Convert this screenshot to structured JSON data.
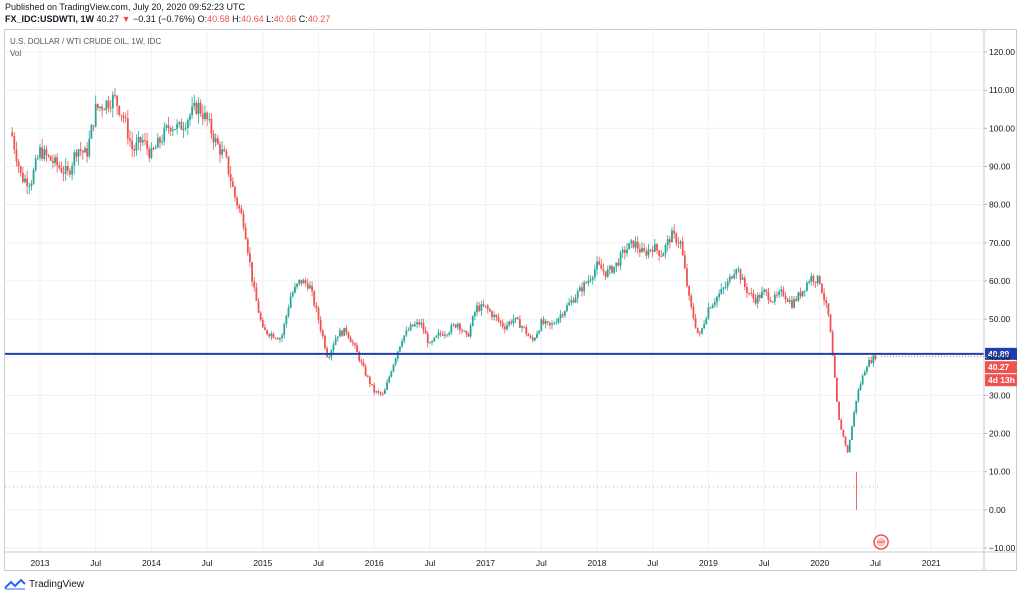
{
  "header": {
    "published": "Published on TradingView.com, July 20, 2020 09:52:23 UTC",
    "symbol": "FX_IDC:USDWTI, 1W",
    "last": "40.27",
    "change_arrow": "▼",
    "change": "−0.31 (−0.76%)",
    "o_label": "O:",
    "o_value": "40.58",
    "h_label": "H:",
    "h_value": "40.64",
    "l_label": "L:",
    "l_value": "40.06",
    "c_label": "C:",
    "c_value": "40.27"
  },
  "legend": {
    "title": "U.S. DOLLAR / WTI CRUDE OIL, 1W, IDC",
    "vol": "Vol"
  },
  "price_axis": {
    "labels": [
      "120.00",
      "110.00",
      "100.00",
      "90.00",
      "80.00",
      "70.00",
      "60.00",
      "50.00",
      "40.00",
      "30.00",
      "20.00",
      "10.00",
      "0.00",
      "−10.00"
    ]
  },
  "time_axis": {
    "labels": [
      "2013",
      "Jul",
      "2014",
      "Jul",
      "2015",
      "Jul",
      "2016",
      "Jul",
      "2017",
      "Jul",
      "2018",
      "Jul",
      "2019",
      "Jul",
      "2020",
      "Jul",
      "2021"
    ]
  },
  "tags": {
    "hline": "40.89",
    "price": "40.27",
    "countdown": "4d 13h"
  },
  "branding": {
    "name": "TradingView"
  },
  "colors": {
    "up": "#26a69a",
    "down": "#ef5350",
    "hline": "#1e40af",
    "dotted": "#d98c8c",
    "grid": "#eef0f4"
  },
  "chart_data": {
    "type": "candlestick",
    "title": "U.S. DOLLAR / WTI CRUDE OIL, 1W, IDC",
    "ylim": [
      -10,
      120
    ],
    "ylabel": "",
    "horizontal_line": 40.89,
    "last_price": 40.27,
    "x_ticks": [
      "2013",
      "Jul",
      "2014",
      "Jul",
      "2015",
      "Jul",
      "2016",
      "Jul",
      "2017",
      "Jul",
      "2018",
      "Jul",
      "2019",
      "Jul",
      "2020",
      "Jul",
      "2021"
    ],
    "x_range": [
      "2012-10",
      "2021-04"
    ],
    "path": [
      [
        "2012-10",
        98
      ],
      [
        "2012-11",
        87
      ],
      [
        "2012-12",
        86
      ],
      [
        "2013-01",
        94
      ],
      [
        "2013-03",
        90
      ],
      [
        "2013-04",
        88
      ],
      [
        "2013-05",
        95
      ],
      [
        "2013-06",
        93
      ],
      [
        "2013-07",
        105
      ],
      [
        "2013-09",
        108
      ],
      [
        "2013-10",
        103
      ],
      [
        "2013-11",
        94
      ],
      [
        "2013-12",
        97
      ],
      [
        "2014-01",
        93
      ],
      [
        "2014-03",
        101
      ],
      [
        "2014-04",
        100
      ],
      [
        "2014-06",
        106
      ],
      [
        "2014-07",
        102
      ],
      [
        "2014-08",
        96
      ],
      [
        "2014-09",
        92
      ],
      [
        "2014-10",
        82
      ],
      [
        "2014-11",
        75
      ],
      [
        "2014-12",
        58
      ],
      [
        "2015-01",
        47
      ],
      [
        "2015-03",
        45
      ],
      [
        "2015-04",
        56
      ],
      [
        "2015-05",
        60
      ],
      [
        "2015-06",
        59
      ],
      [
        "2015-07",
        50
      ],
      [
        "2015-08",
        40
      ],
      [
        "2015-09",
        46
      ],
      [
        "2015-10",
        47
      ],
      [
        "2015-11",
        42
      ],
      [
        "2015-12",
        36
      ],
      [
        "2016-01",
        31
      ],
      [
        "2016-02",
        30
      ],
      [
        "2016-03",
        38
      ],
      [
        "2016-04",
        45
      ],
      [
        "2016-05",
        48
      ],
      [
        "2016-06",
        49
      ],
      [
        "2016-07",
        43
      ],
      [
        "2016-08",
        46
      ],
      [
        "2016-09",
        47
      ],
      [
        "2016-10",
        49
      ],
      [
        "2016-11",
        45
      ],
      [
        "2016-12",
        53
      ],
      [
        "2017-01",
        53
      ],
      [
        "2017-03",
        48
      ],
      [
        "2017-04",
        50
      ],
      [
        "2017-05",
        48
      ],
      [
        "2017-06",
        44
      ],
      [
        "2017-07",
        49
      ],
      [
        "2017-08",
        48
      ],
      [
        "2017-09",
        51
      ],
      [
        "2017-10",
        54
      ],
      [
        "2017-11",
        57
      ],
      [
        "2017-12",
        60
      ],
      [
        "2018-01",
        64
      ],
      [
        "2018-02",
        62
      ],
      [
        "2018-03",
        64
      ],
      [
        "2018-04",
        68
      ],
      [
        "2018-05",
        70
      ],
      [
        "2018-06",
        67
      ],
      [
        "2018-07",
        69
      ],
      [
        "2018-08",
        67
      ],
      [
        "2018-09",
        72
      ],
      [
        "2018-10",
        70
      ],
      [
        "2018-11",
        54
      ],
      [
        "2018-12",
        45
      ],
      [
        "2019-01",
        53
      ],
      [
        "2019-02",
        56
      ],
      [
        "2019-03",
        59
      ],
      [
        "2019-04",
        64
      ],
      [
        "2019-05",
        58
      ],
      [
        "2019-06",
        55
      ],
      [
        "2019-07",
        57
      ],
      [
        "2019-08",
        55
      ],
      [
        "2019-09",
        57
      ],
      [
        "2019-10",
        54
      ],
      [
        "2019-11",
        57
      ],
      [
        "2019-12",
        61
      ],
      [
        "2020-01",
        60
      ],
      [
        "2020-02",
        50
      ],
      [
        "2020-03",
        24
      ],
      [
        "2020-04",
        15
      ],
      [
        "2020-05",
        30
      ],
      [
        "2020-06",
        38
      ],
      [
        "2020-07",
        40.3
      ]
    ]
  }
}
